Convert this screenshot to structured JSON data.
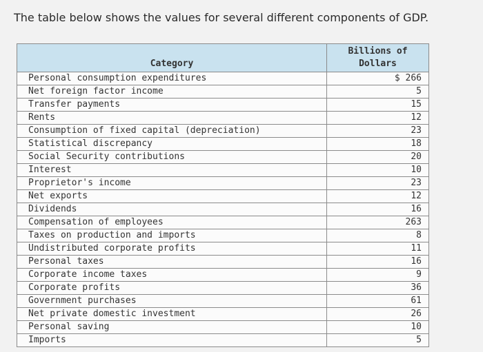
{
  "intro_text": "The table below shows the values for several different components of GDP.",
  "table": {
    "headers": {
      "category": "Category",
      "value": "Billions of Dollars"
    },
    "rows": [
      {
        "category": "Personal consumption expenditures",
        "value": "$ 266"
      },
      {
        "category": "Net foreign factor income",
        "value": "5"
      },
      {
        "category": "Transfer payments",
        "value": "15"
      },
      {
        "category": "Rents",
        "value": "12"
      },
      {
        "category": "Consumption of fixed capital (depreciation)",
        "value": "23"
      },
      {
        "category": "Statistical discrepancy",
        "value": "18"
      },
      {
        "category": "Social Security contributions",
        "value": "20"
      },
      {
        "category": "Interest",
        "value": "10"
      },
      {
        "category": "Proprietor's income",
        "value": "23"
      },
      {
        "category": "Net exports",
        "value": "12"
      },
      {
        "category": "Dividends",
        "value": "16"
      },
      {
        "category": "Compensation of employees",
        "value": "263"
      },
      {
        "category": "Taxes on production and imports",
        "value": "8"
      },
      {
        "category": "Undistributed corporate profits",
        "value": "11"
      },
      {
        "category": "Personal taxes",
        "value": "16"
      },
      {
        "category": "Corporate income taxes",
        "value": "9"
      },
      {
        "category": "Corporate profits",
        "value": "36"
      },
      {
        "category": "Government purchases",
        "value": "61"
      },
      {
        "category": "Net private domestic investment",
        "value": "26"
      },
      {
        "category": "Personal saving",
        "value": "10"
      },
      {
        "category": "Imports",
        "value": "5"
      }
    ]
  }
}
